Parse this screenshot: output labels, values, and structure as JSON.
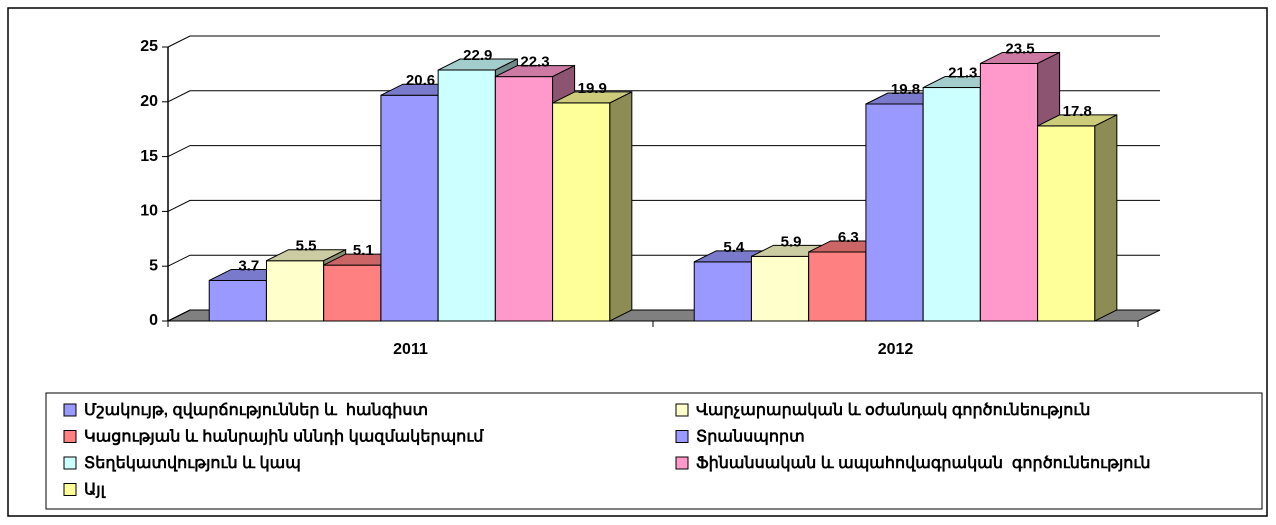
{
  "chart_data": {
    "type": "bar3d",
    "categories": [
      "2011",
      "2012"
    ],
    "series": [
      {
        "name": "Մշակույթ, զվարճություններ և  հանգիստ",
        "color": "#9999ff",
        "values": [
          3.7,
          5.4
        ]
      },
      {
        "name": "Վարչարարական և օժանդակ գործունեություն",
        "color": "#ffffcc",
        "values": [
          5.5,
          5.9
        ]
      },
      {
        "name": "Կացության և հանրային սննդի կազմակերպում",
        "color": "#ff8080",
        "values": [
          5.1,
          6.3
        ]
      },
      {
        "name": "Տրանսպորտ",
        "color": "#9999ff",
        "values": [
          20.6,
          19.8
        ]
      },
      {
        "name": "Տեղեկատվություն և կապ",
        "color": "#ccffff",
        "values": [
          22.9,
          21.3
        ]
      },
      {
        "name": "Ֆինանսական և ապահովագրական  գործունեություն",
        "color": "#ff99cc",
        "values": [
          22.3,
          23.5
        ]
      },
      {
        "name": "Այլ",
        "color": "#ffff99",
        "values": [
          19.9,
          17.8
        ]
      }
    ],
    "ylim": [
      0,
      25
    ],
    "yticks": [
      0,
      5,
      10,
      15,
      20,
      25
    ],
    "grid": true,
    "legend": "bottom"
  }
}
